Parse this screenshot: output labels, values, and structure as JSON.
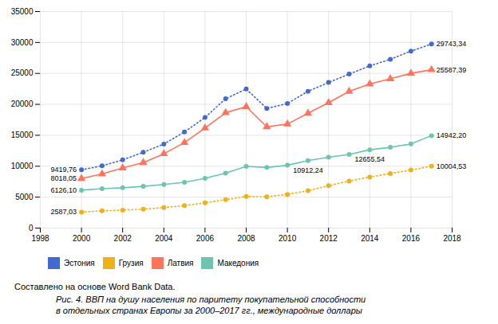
{
  "chart_data": {
    "type": "line",
    "x": [
      2000,
      2001,
      2002,
      2003,
      2004,
      2005,
      2006,
      2007,
      2008,
      2009,
      2010,
      2011,
      2012,
      2013,
      2014,
      2015,
      2016,
      2017
    ],
    "series": [
      {
        "name": "Эстония",
        "marker": "circle",
        "line_style": "dotted",
        "values": [
          9419.76,
          10066,
          11022,
          12245,
          13590,
          15530,
          17873,
          20901,
          22475,
          19340,
          20131,
          22109,
          23535,
          24890,
          26215,
          27280,
          28612,
          29743.34
        ],
        "value_labels": [
          "9419,76",
          null,
          null,
          null,
          null,
          null,
          null,
          null,
          null,
          null,
          null,
          null,
          null,
          null,
          null,
          null,
          null,
          "29743,34"
        ]
      },
      {
        "name": "Грузия",
        "marker": "circle",
        "line_style": "dotted",
        "values": [
          2587.03,
          2790,
          2900,
          3050,
          3320,
          3620,
          4080,
          4590,
          5110,
          5060,
          5440,
          6040,
          6850,
          7600,
          8250,
          8820,
          9380,
          10004.53
        ],
        "value_labels": [
          "2587,03",
          null,
          null,
          null,
          null,
          null,
          null,
          null,
          null,
          null,
          null,
          null,
          null,
          null,
          null,
          null,
          null,
          "10004,53"
        ]
      },
      {
        "name": "Латвия",
        "marker": "triangle",
        "line_style": "solid",
        "values": [
          8018.05,
          8750,
          9720,
          10590,
          12010,
          13820,
          16170,
          18640,
          19620,
          16370,
          16810,
          18560,
          20260,
          22100,
          23290,
          24130,
          25010,
          25587.39
        ],
        "value_labels": [
          "8018,05",
          null,
          null,
          null,
          null,
          null,
          null,
          null,
          null,
          null,
          null,
          null,
          null,
          null,
          null,
          null,
          null,
          "25587,39"
        ]
      },
      {
        "name": "Македония",
        "marker": "circle",
        "line_style": "solid",
        "values": [
          6126.1,
          6370,
          6520,
          6740,
          7050,
          7390,
          8040,
          8870,
          9970,
          9800,
          10150,
          10912.24,
          11460,
          11900,
          12655.54,
          13050,
          13600,
          14942.2
        ],
        "value_labels": [
          "6126,10",
          null,
          null,
          null,
          null,
          null,
          null,
          null,
          null,
          null,
          null,
          "10912,24",
          null,
          null,
          "12655,54",
          null,
          null,
          "14942,20"
        ]
      }
    ],
    "xlim": [
      1998,
      2018
    ],
    "ylim": [
      0,
      35000
    ],
    "xticks": [
      1998,
      2000,
      2002,
      2004,
      2006,
      2008,
      2010,
      2012,
      2014,
      2016,
      2018
    ],
    "yticks": [
      0,
      5000,
      10000,
      15000,
      20000,
      25000,
      30000,
      35000
    ],
    "grid": true,
    "legend": "bottom",
    "data_labels": true,
    "source": "Составлено на основе Word Bank Data.",
    "caption": [
      "Рис. 4. ВВП на душу населения по паритету покупательной способности",
      "в отдельных странах Европы за 2000–2017 гг., международные доллары"
    ]
  }
}
